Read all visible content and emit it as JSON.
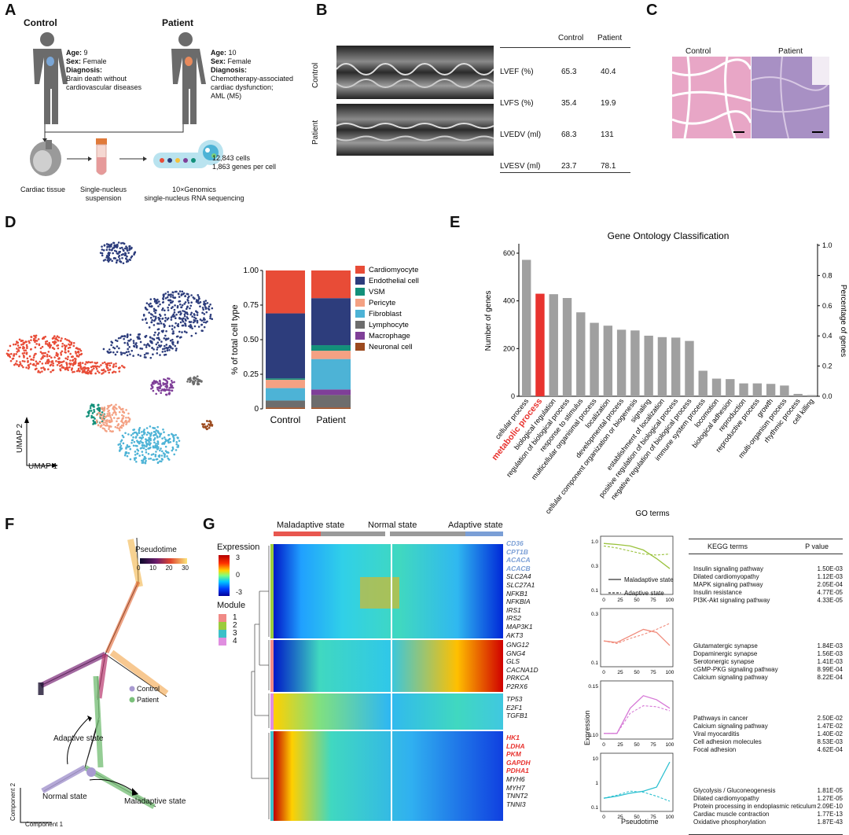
{
  "panels": {
    "A": "A",
    "B": "B",
    "C": "C",
    "D": "D",
    "E": "E",
    "F": "F",
    "G": "G"
  },
  "panelA": {
    "control_title": "Control",
    "patient_title": "Patient",
    "control_info": {
      "age_label": "Age:",
      "age": "9",
      "sex_label": "Sex:",
      "sex": "Female",
      "diag_label": "Diagnosis:",
      "diag1": "Brain death without",
      "diag2": "cardiovascular diseases"
    },
    "patient_info": {
      "age_label": "Age:",
      "age": "10",
      "sex_label": "Sex:",
      "sex": "Female",
      "diag_label": "Diagnosis:",
      "diag1": "Chemotherapy-associated",
      "diag2": "cardiac dysfunction;",
      "diag3": "AML (M5)"
    },
    "step1": "Cardiac tissue",
    "step2a": "Single-nucleus",
    "step2b": "suspension",
    "step3a": "10×Genomics",
    "step3b": "single-nucleus RNA sequencing",
    "cells": "12,843 cells",
    "genes": "1,863 genes per cell"
  },
  "panelB": {
    "echo_label_control": "Control",
    "echo_label_patient": "Patient",
    "table": {
      "headers": [
        "",
        "Control",
        "Patient"
      ],
      "rows": [
        [
          "LVEF (%)",
          "65.3",
          "40.4"
        ],
        [
          "LVFS (%)",
          "35.4",
          "19.9"
        ],
        [
          "LVEDV (ml)",
          "68.3",
          "131"
        ],
        [
          "LVESV (ml)",
          "23.7",
          "78.1"
        ]
      ]
    }
  },
  "panelC": {
    "control": "Control",
    "patient": "Patient"
  },
  "panelD": {
    "umap1": "UMAP 1",
    "umap2": "UMAP 2",
    "chart_data": {
      "type": "bar",
      "stacked": true,
      "categories": [
        "Control",
        "Patient"
      ],
      "ylabel": "% of total cell type",
      "ylim": [
        0,
        1
      ],
      "yticks": [
        "0",
        "0.25",
        "0.50",
        "0.75",
        "1.00"
      ],
      "series": [
        {
          "name": "Neuronal cell",
          "color": "#9c4a1e",
          "values": [
            0.01,
            0.01
          ]
        },
        {
          "name": "Lymphocyte",
          "color": "#6d6d6d",
          "values": [
            0.05,
            0.09
          ]
        },
        {
          "name": "Macrophage",
          "color": "#7f3f98",
          "values": [
            0.0,
            0.04
          ]
        },
        {
          "name": "Fibroblast",
          "color": "#4db3d6",
          "values": [
            0.09,
            0.22
          ]
        },
        {
          "name": "Pericyte",
          "color": "#f4a183",
          "values": [
            0.06,
            0.06
          ]
        },
        {
          "name": "VSM",
          "color": "#13907a",
          "values": [
            0.01,
            0.04
          ]
        },
        {
          "name": "Endothelial cell",
          "color": "#2d3d7c",
          "values": [
            0.47,
            0.34
          ]
        },
        {
          "name": "Cardiomyocyte",
          "color": "#e84c37",
          "values": [
            0.31,
            0.2
          ]
        }
      ],
      "legend": [
        "Cardiomyocyte",
        "Endothelial cell",
        "VSM",
        "Pericyte",
        "Fibroblast",
        "Lymphocyte",
        "Macrophage",
        "Neuronal cell"
      ]
    }
  },
  "panelE": {
    "chart_data": {
      "type": "bar",
      "title": "Gene Ontology Classification",
      "xlabel": "GO terms",
      "ylabel": "Number of genes",
      "y2label": "Percentage of genes",
      "ylim": [
        0,
        600
      ],
      "yticks": [
        "0",
        "200",
        "400",
        "600"
      ],
      "y2ticks": [
        "0.0",
        "0.2",
        "0.4",
        "0.6",
        "0.8",
        "1.0"
      ],
      "highlight": "metabolic process",
      "categories": [
        "cellular process",
        "metabolic process",
        "biological regulation",
        "regulation of biological process",
        "response to stimulus",
        "multicellular organismal process",
        "localization",
        "developmental process",
        "cellular component organization or biogenesis",
        "signaling",
        "establishment of localization",
        "positive regulation of biological process",
        "negative regulation of biological process",
        "immune system process",
        "locomotion",
        "biological adhesion",
        "reproduction",
        "reproductive process",
        "growth",
        "multi-organism process",
        "rhythmic process",
        "cell killing"
      ],
      "values": [
        572,
        430,
        428,
        412,
        352,
        308,
        296,
        279,
        276,
        254,
        248,
        246,
        232,
        107,
        74,
        72,
        54,
        54,
        52,
        45,
        10,
        5
      ]
    }
  },
  "panelF": {
    "legend_title": "Pseudotime",
    "ticks": [
      "0",
      "10",
      "20",
      "30"
    ],
    "control": "Control",
    "patient": "Patient",
    "adaptive": "Adaptive state",
    "normal": "Normal state",
    "maladaptive": "Maladaptive state",
    "comp1": "Component 1",
    "comp2": "Component 2"
  },
  "panelG": {
    "states": {
      "maladaptive": "Maladaptive state",
      "normal": "Normal state",
      "adaptive": "Adaptive state"
    },
    "expression_title": "Expression",
    "expr_ticks": [
      "3",
      "0",
      "-3"
    ],
    "module_title": "Module",
    "modules": [
      "1",
      "2",
      "3",
      "4"
    ],
    "genes_m1": [
      "CD36",
      "CPT1B",
      "ACACA",
      "ACACB",
      "SLC2A4",
      "SLC27A1",
      "NFKB1",
      "NFKBIA",
      "IRS1",
      "IRS2",
      "MAP3K1",
      "AKT3"
    ],
    "genes_m2": [
      "GNG12",
      "GNG4",
      "GLS",
      "CACNA1D",
      "PRKCA",
      "P2RX6"
    ],
    "genes_m3": [
      "TP53",
      "E2F1",
      "TGFB1"
    ],
    "genes_m4": [
      "HK1",
      "LDHA",
      "PKM",
      "GAPDH",
      "PDHA1",
      "MYH6",
      "MYH7",
      "TNNT2",
      "TNNI3"
    ],
    "line_legend": {
      "mal": "Maladaptive state",
      "ada": "Adaptive state"
    },
    "expression_axis": "Expression",
    "pseudotime_axis": "Pseudotime",
    "xticks": [
      "0",
      "25",
      "50",
      "75",
      "100"
    ],
    "mini_yticks": [
      [
        "1.0",
        "0.3",
        "0.1"
      ],
      [
        "0.3",
        "0.1"
      ],
      [
        "0.15",
        "0.10"
      ],
      [
        "10",
        "1",
        "0.1"
      ]
    ],
    "kegg_header": {
      "term": "KEGG terms",
      "p": "P value"
    },
    "kegg": [
      [
        [
          "Insulin signaling pathway",
          "1.50E-03"
        ],
        [
          "Dilated cardiomyopathy",
          "1.12E-03"
        ],
        [
          "MAPK signaling pathway",
          "2.05E-04"
        ],
        [
          "Insulin resistance",
          "4.77E-05"
        ],
        [
          "PI3K-Akt signaling pathway",
          "4.33E-05"
        ]
      ],
      [
        [
          "Glutamatergic synapse",
          "1.84E-03"
        ],
        [
          "Dopaminergic synapse",
          "1.56E-03"
        ],
        [
          "Serotonergic synapse",
          "1.41E-03"
        ],
        [
          "cGMP-PKG signaling pathway",
          "8.99E-04"
        ],
        [
          "Calcium signaling pathway",
          "8.22E-04"
        ]
      ],
      [
        [
          "Pathways in cancer",
          "2.50E-02"
        ],
        [
          "Calcium signaling pathway",
          "1.47E-02"
        ],
        [
          "Viral myocarditis",
          "1.40E-02"
        ],
        [
          "Cell adhesion molecules",
          "8.53E-03"
        ],
        [
          "Focal adhesion",
          "4.62E-04"
        ]
      ],
      [
        [
          "Glycolysis / Gluconeogenesis",
          "1.81E-05"
        ],
        [
          "Dilated cardiomyopathy",
          "1.27E-05"
        ],
        [
          "Protein processing in endoplasmic reticulum",
          "2.09E-10"
        ],
        [
          "Cardiac muscle contraction",
          "1.77E-13"
        ],
        [
          "Oxidative phosphorylation",
          "1.87E-43"
        ]
      ]
    ]
  },
  "colors": {
    "red": "#e8332f",
    "blue": "#7b9fd6",
    "gray": "#a0a0a0"
  }
}
